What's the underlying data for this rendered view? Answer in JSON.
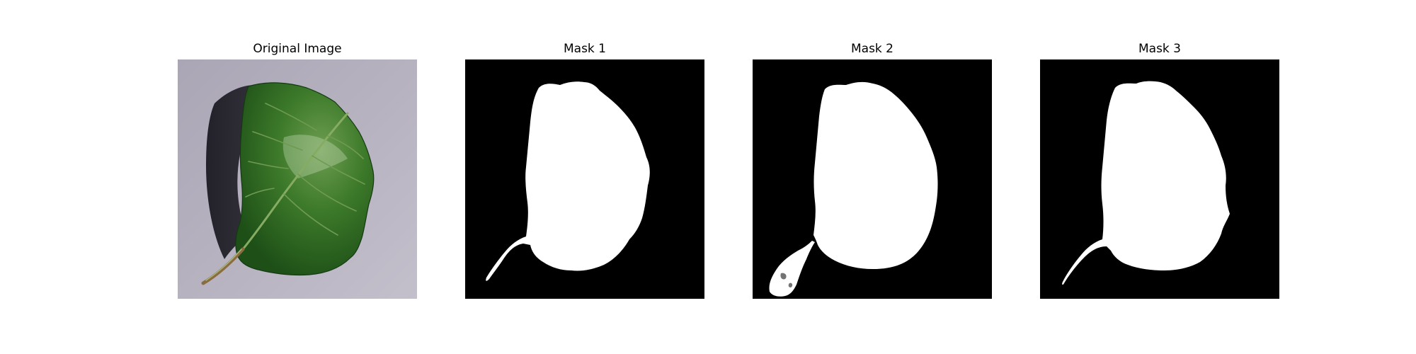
{
  "figure": {
    "panels": [
      {
        "title": "Original Image",
        "kind": "photo"
      },
      {
        "title": "Mask 1",
        "kind": "mask"
      },
      {
        "title": "Mask 2",
        "kind": "mask"
      },
      {
        "title": "Mask 3",
        "kind": "mask"
      }
    ],
    "colors": {
      "background": "#b7b2bf",
      "leaf_dark": "#1e4f16",
      "leaf_mid": "#356f23",
      "leaf_light": "#6d9c4f",
      "mask_background": "#000000",
      "mask_foreground": "#ffffff"
    }
  }
}
